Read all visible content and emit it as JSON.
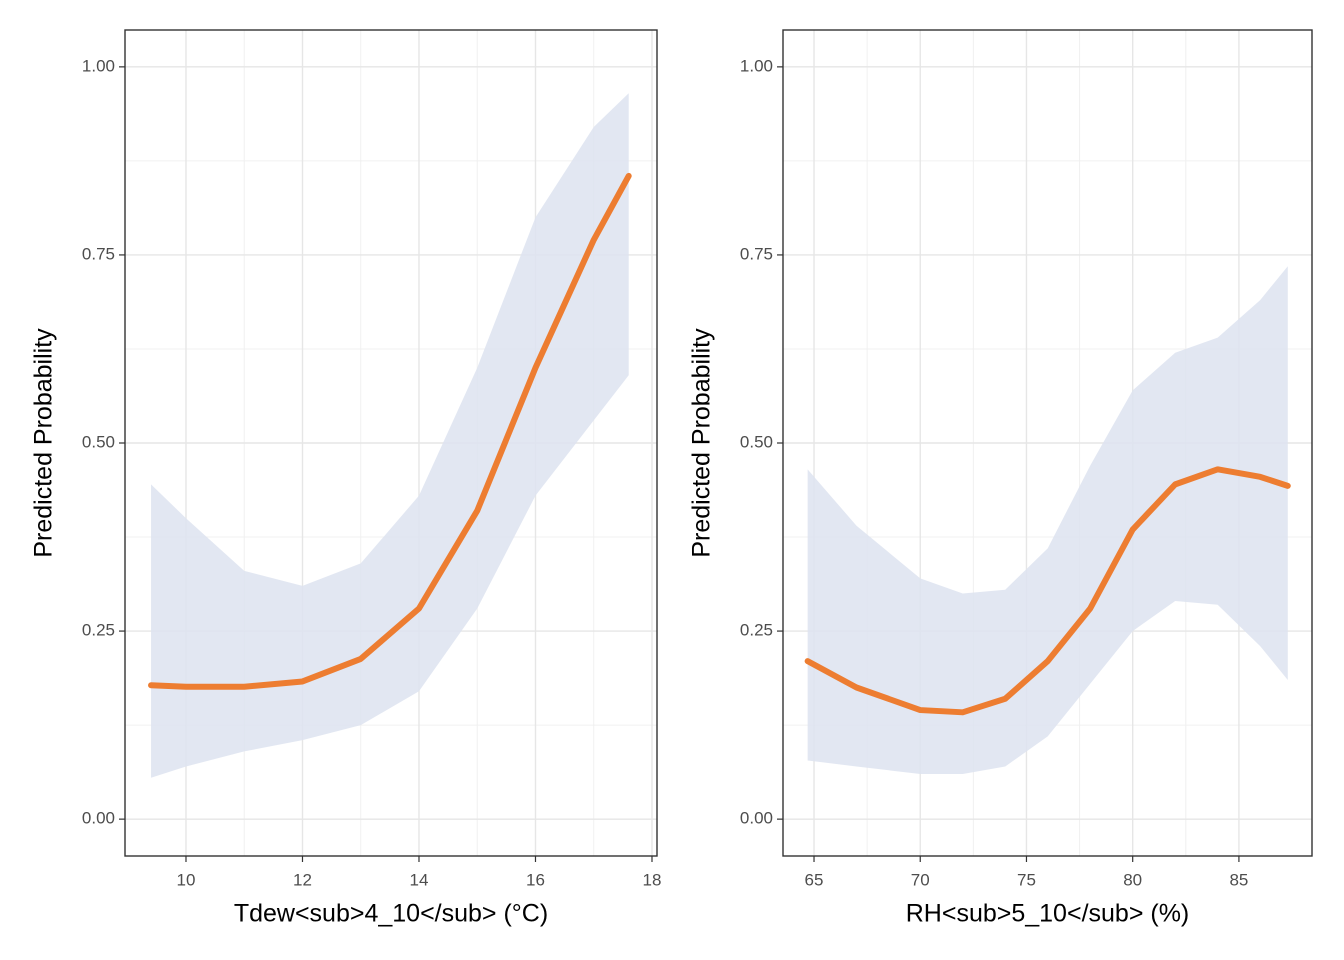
{
  "chart_data": [
    {
      "type": "line",
      "x_label": "Tdew<sub>4_10</sub> (°C)",
      "y_label": "Predicted Probability",
      "x": [
        9.4,
        10,
        11,
        12,
        13,
        14,
        15,
        16,
        17,
        17.6
      ],
      "values": [
        0.178,
        0.176,
        0.176,
        0.183,
        0.213,
        0.28,
        0.41,
        0.6,
        0.77,
        0.855
      ],
      "upper": [
        0.445,
        0.4,
        0.33,
        0.31,
        0.34,
        0.43,
        0.6,
        0.8,
        0.92,
        0.965
      ],
      "lower": [
        0.055,
        0.07,
        0.09,
        0.105,
        0.125,
        0.17,
        0.28,
        0.43,
        0.53,
        0.59
      ],
      "color": "#ED7D31",
      "band_color": "#dde3f0",
      "xlim": [
        8.953,
        18.086
      ],
      "xticks": [
        10,
        12,
        14,
        16,
        18
      ],
      "ylim": [
        -0.049,
        1.049
      ],
      "yticks": [
        {
          "value": 0,
          "label": "0.00"
        },
        {
          "value": 0.25,
          "label": "0.25"
        },
        {
          "value": 0.5,
          "label": "0.50"
        },
        {
          "value": 0.75,
          "label": "0.75"
        },
        {
          "value": 1,
          "label": "1.00"
        }
      ],
      "grid": true
    },
    {
      "type": "line",
      "x_label": "RH<sub>5_10</sub> (%)",
      "y_label": "Predicted Probability",
      "x": [
        64.7,
        67,
        70,
        72,
        74,
        76,
        78,
        80,
        82,
        84,
        86,
        87.3
      ],
      "values": [
        0.21,
        0.175,
        0.145,
        0.142,
        0.16,
        0.21,
        0.28,
        0.385,
        0.445,
        0.465,
        0.455,
        0.443
      ],
      "upper": [
        0.465,
        0.39,
        0.32,
        0.3,
        0.305,
        0.36,
        0.47,
        0.57,
        0.62,
        0.64,
        0.69,
        0.735
      ],
      "lower": [
        0.078,
        0.07,
        0.06,
        0.06,
        0.07,
        0.11,
        0.18,
        0.25,
        0.29,
        0.285,
        0.23,
        0.185
      ],
      "color": "#ED7D31",
      "band_color": "#dde3f0",
      "xlim": [
        63.54,
        88.44
      ],
      "xticks": [
        65,
        70,
        75,
        80,
        85
      ],
      "ylim": [
        -0.049,
        1.049
      ],
      "yticks": [
        {
          "value": 0,
          "label": "0.00"
        },
        {
          "value": 0.25,
          "label": "0.25"
        },
        {
          "value": 0.5,
          "label": "0.50"
        },
        {
          "value": 0.75,
          "label": "0.75"
        },
        {
          "value": 1,
          "label": "1.00"
        }
      ],
      "grid": true
    }
  ]
}
